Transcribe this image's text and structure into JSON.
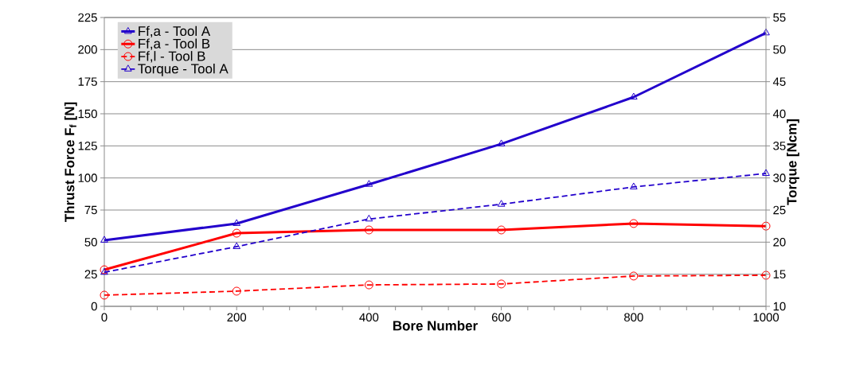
{
  "chart_data": {
    "type": "line",
    "xlabel": "Bore Number",
    "ylabel": "Thrust Force F$_{f}$ [N]",
    "y2label": "Torque [Ncm]",
    "x": [
      0,
      200,
      400,
      600,
      800,
      1000
    ],
    "xlim": [
      0,
      1000
    ],
    "xticks": [
      0,
      200,
      400,
      600,
      800,
      1000
    ],
    "ylim": [
      0,
      225
    ],
    "yticks": [
      0,
      25,
      50,
      75,
      100,
      125,
      150,
      175,
      200,
      225
    ],
    "y2lim": [
      10,
      55
    ],
    "y2ticks": [
      10,
      15,
      20,
      25,
      30,
      35,
      40,
      45,
      50,
      55
    ],
    "grid": "y",
    "legend": "top left",
    "series": [
      {
        "name": "Ff,a - Tool A",
        "color": "#2200cc",
        "marker": "triangle",
        "line_style": "solid",
        "values": [
          51.5,
          64.5,
          95,
          126.5,
          163,
          213
        ]
      },
      {
        "name": "Ff,a - Tool B",
        "color": "#ff0000",
        "marker": "circle",
        "line_style": "solid",
        "values": [
          28.5,
          57,
          59.5,
          59.5,
          64.5,
          62.5
        ]
      },
      {
        "name": "Ff,l - Tool B",
        "color": "#ff0000",
        "marker": "circle",
        "line_style": "dashed",
        "values": [
          8.7,
          11.8,
          16.7,
          17.4,
          23.6,
          24.2
        ]
      },
      {
        "name": "Torque - Tool A",
        "color": "#2200cc",
        "marker": "triangle",
        "line_style": "dashed",
        "axis": "y2",
        "values": [
          15.3,
          19.3,
          23.6,
          25.9,
          28.6,
          30.7
        ]
      }
    ]
  }
}
